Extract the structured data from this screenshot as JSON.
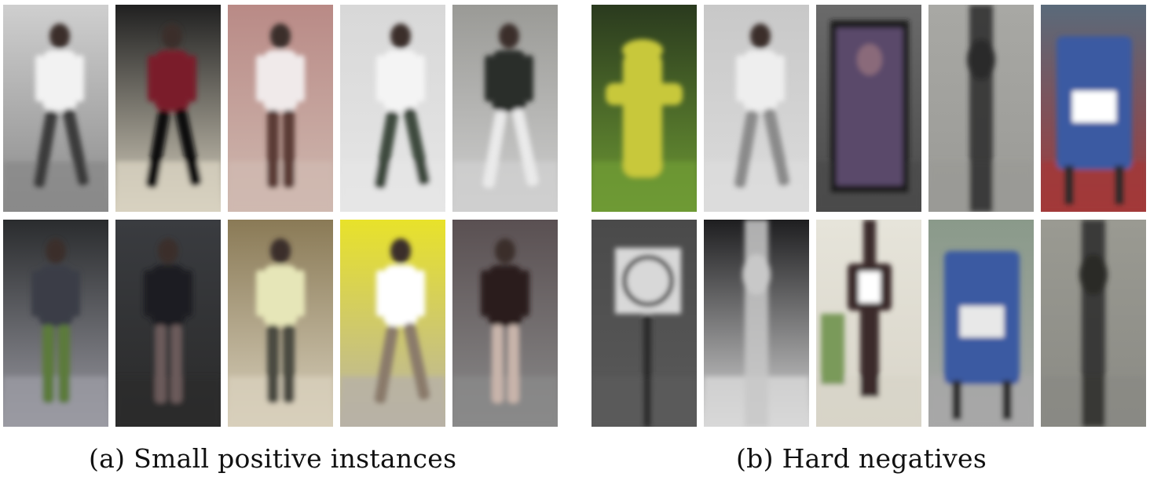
{
  "figure": {
    "panels": [
      {
        "id": "a",
        "caption": "(a) Small positive instances",
        "crops": [
          {
            "bg": "#cfcfcf",
            "fig": "#f2f2f2",
            "accent": "#3a3a3a",
            "ground": "#8a8a8a"
          },
          {
            "bg": "#202020",
            "fig": "#7a1e2a",
            "accent": "#111111",
            "ground": "#d8d2c0"
          },
          {
            "bg": "#b98a86",
            "fig": "#f0eaea",
            "accent": "#5a3a34",
            "ground": "#cfb9b0"
          },
          {
            "bg": "#d8d8d8",
            "fig": "#f4f4f4",
            "accent": "#3c4a3c",
            "ground": "#e6e6e6"
          },
          {
            "bg": "#9a9a96",
            "fig": "#2c2e2a",
            "accent": "#eaeaea",
            "ground": "#cfcfcf"
          },
          {
            "bg": "#2a2c2e",
            "fig": "#3a3e46",
            "accent": "#5c7a3a",
            "ground": "#9a9aa2"
          },
          {
            "bg": "#3a3c40",
            "fig": "#1c1c20",
            "accent": "#6a5a5a",
            "ground": "#2a2a2a"
          },
          {
            "bg": "#8a7a56",
            "fig": "#e6e6b8",
            "accent": "#4a4a40",
            "ground": "#d8d0bc"
          },
          {
            "bg": "#e8e22a",
            "fig": "#ffffff",
            "accent": "#8a7a6a",
            "ground": "#b8b2a6"
          },
          {
            "bg": "#5a5052",
            "fig": "#2a1e1e",
            "accent": "#c8b4aa",
            "ground": "#8a8a8a"
          }
        ]
      },
      {
        "id": "b",
        "caption": "(b) Hard negatives",
        "crops": [
          {
            "bg": "#2a3a1e",
            "fig": "#c8c83a",
            "accent": "#7aa23a",
            "ground": "#6e9a34"
          },
          {
            "bg": "#c8c8c8",
            "fig": "#eeeeee",
            "accent": "#8a8a8a",
            "ground": "#dcdcdc"
          },
          {
            "bg": "#6a6a6a",
            "fig": "#5a4a6a",
            "accent": "#1a1a1a",
            "ground": "#4a4a4a"
          },
          {
            "bg": "#a8a8a4",
            "fig": "#2a2a2a",
            "accent": "#8a8a86",
            "ground": "#9a9a96"
          },
          {
            "bg": "#5a6a7a",
            "fig": "#3a5aa2",
            "accent": "#ffffff",
            "ground": "#a23a3a"
          },
          {
            "bg": "#4a4a4a",
            "fig": "#d8d8d8",
            "accent": "#2a2a2a",
            "ground": "#5a5a5a"
          },
          {
            "bg": "#1e1e20",
            "fig": "#c8c8c8",
            "accent": "#0e0e0e",
            "ground": "#d8d8d8"
          },
          {
            "bg": "#e6e4da",
            "fig": "#3a2a2a",
            "accent": "#7a9a5a",
            "ground": "#d8d4c8"
          },
          {
            "bg": "#8a9a8a",
            "fig": "#3a5aa2",
            "accent": "#e8e8e8",
            "ground": "#a8a8a8"
          },
          {
            "bg": "#9a9a92",
            "fig": "#2a2a28",
            "accent": "#7a7a74",
            "ground": "#8a8a84"
          }
        ]
      }
    ]
  }
}
